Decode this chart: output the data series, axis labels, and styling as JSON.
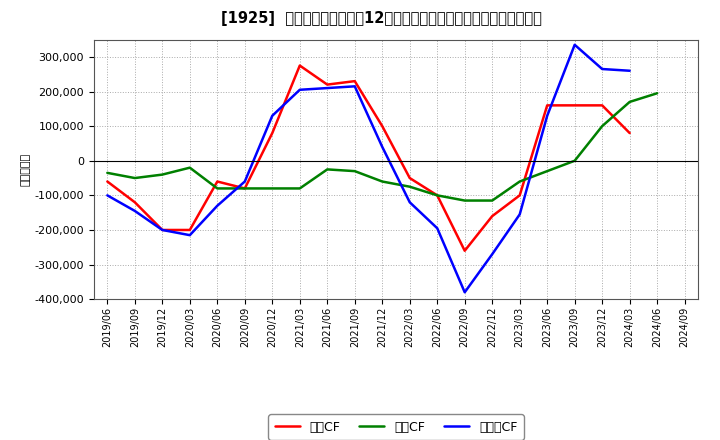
{
  "title": "[1925]  キャッシュフローの12か月移動合計の対前年同期増減額の推移",
  "ylabel": "（百万円）",
  "background_color": "#ffffff",
  "plot_bg_color": "#ffffff",
  "grid_color": "#aaaaaa",
  "ylim": [
    -400000,
    350000
  ],
  "yticks": [
    -400000,
    -300000,
    -200000,
    -100000,
    0,
    100000,
    200000,
    300000
  ],
  "x_labels": [
    "2019/06",
    "2019/09",
    "2019/12",
    "2020/03",
    "2020/06",
    "2020/09",
    "2020/12",
    "2021/03",
    "2021/06",
    "2021/09",
    "2021/12",
    "2022/03",
    "2022/06",
    "2022/09",
    "2022/12",
    "2023/03",
    "2023/06",
    "2023/09",
    "2023/12",
    "2024/03",
    "2024/06",
    "2024/09"
  ],
  "operating_cf": [
    -60000,
    -120000,
    -200000,
    -200000,
    -60000,
    -80000,
    80000,
    275000,
    220000,
    230000,
    100000,
    -50000,
    -100000,
    -260000,
    -160000,
    -100000,
    160000,
    160000,
    160000,
    80000,
    null,
    null
  ],
  "investing_cf": [
    -35000,
    -50000,
    -40000,
    -20000,
    -80000,
    -80000,
    -80000,
    -80000,
    -25000,
    -30000,
    -60000,
    -75000,
    -100000,
    -115000,
    -115000,
    -60000,
    -30000,
    0,
    100000,
    170000,
    195000,
    null
  ],
  "free_cf": [
    -100000,
    -145000,
    -200000,
    -215000,
    -130000,
    -60000,
    130000,
    205000,
    210000,
    215000,
    40000,
    -120000,
    -195000,
    -380000,
    -270000,
    -155000,
    130000,
    335000,
    265000,
    260000,
    null,
    null
  ],
  "operating_color": "#ff0000",
  "investing_color": "#008000",
  "free_color": "#0000ff",
  "line_width": 1.8
}
